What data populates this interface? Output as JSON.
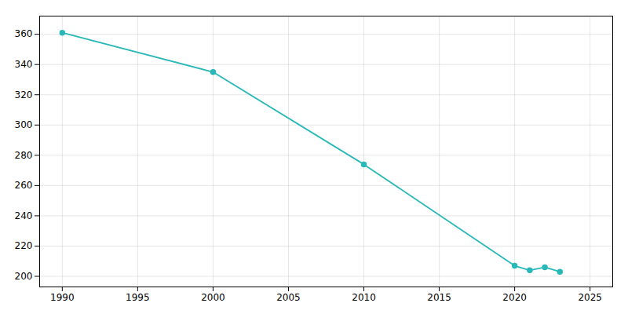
{
  "chart_data": {
    "type": "line",
    "x": [
      1990,
      2000,
      2010,
      2020,
      2021,
      2022,
      2023
    ],
    "values": [
      361,
      335,
      274,
      207,
      204,
      206,
      203
    ],
    "color": "#29b8b8",
    "marker": "circle",
    "xlim": [
      1988.5,
      2026.5
    ],
    "ylim": [
      193,
      372
    ],
    "xticks": [
      1990,
      1995,
      2000,
      2005,
      2010,
      2015,
      2020,
      2025
    ],
    "yticks": [
      200,
      220,
      240,
      260,
      280,
      300,
      320,
      340,
      360
    ],
    "grid": true
  }
}
